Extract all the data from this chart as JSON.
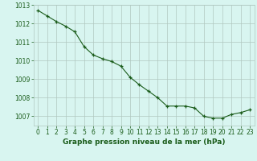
{
  "x": [
    0,
    1,
    2,
    3,
    4,
    5,
    6,
    7,
    8,
    9,
    10,
    11,
    12,
    13,
    14,
    15,
    16,
    17,
    18,
    19,
    20,
    21,
    22,
    23
  ],
  "y": [
    1012.7,
    1012.4,
    1012.1,
    1011.85,
    1011.55,
    1010.75,
    1010.3,
    1010.1,
    1009.95,
    1009.7,
    1009.1,
    1008.7,
    1008.35,
    1008.0,
    1007.55,
    1007.55,
    1007.55,
    1007.45,
    1007.0,
    1006.9,
    1006.9,
    1007.1,
    1007.2,
    1007.35
  ],
  "line_color": "#1a5c1a",
  "marker": "+",
  "marker_size": 3,
  "bg_color": "#d8f5f0",
  "grid_color": "#b0c8c0",
  "title": "Graphe pression niveau de la mer (hPa)",
  "ylim_min": 1006.5,
  "ylim_max": 1013.0,
  "yticks": [
    1007,
    1008,
    1009,
    1010,
    1011,
    1012,
    1013
  ],
  "xticks": [
    0,
    1,
    2,
    3,
    4,
    5,
    6,
    7,
    8,
    9,
    10,
    11,
    12,
    13,
    14,
    15,
    16,
    17,
    18,
    19,
    20,
    21,
    22,
    23
  ],
  "title_fontsize": 6.5,
  "tick_fontsize": 5.5,
  "title_color": "#1a5c1a",
  "tick_color": "#1a5c1a"
}
